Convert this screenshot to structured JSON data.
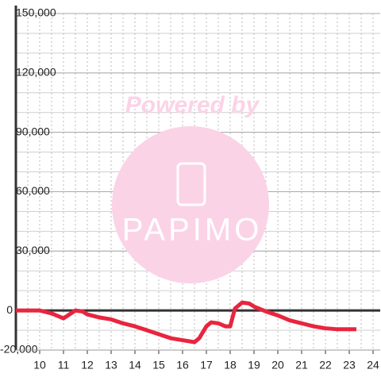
{
  "chart_data": {
    "type": "line",
    "annotations": [
      "Powered by",
      "PAPIMO"
    ],
    "x": [
      9,
      10,
      10.5,
      11,
      11.5,
      11.8,
      12,
      12.5,
      13,
      13.5,
      14,
      14.5,
      15,
      15.5,
      16,
      16.5,
      16.7,
      17,
      17.2,
      17.5,
      17.8,
      18,
      18.2,
      18.5,
      18.8,
      19,
      19.5,
      20,
      20.5,
      21,
      21.5,
      22,
      22.5,
      23,
      23.3
    ],
    "series": [
      {
        "color": "#e8253f",
        "values": [
          0,
          0,
          -1500,
          -4000,
          0,
          -500,
          -2000,
          -3500,
          -4500,
          -6500,
          -8000,
          -10000,
          -12000,
          -14000,
          -15000,
          -16000,
          -14000,
          -8000,
          -6000,
          -6500,
          -8000,
          -8000,
          1000,
          4000,
          3500,
          2000,
          -500,
          -2500,
          -5000,
          -6500,
          -8000,
          -9000,
          -9500,
          -9500,
          -9500
        ]
      }
    ],
    "xlim": [
      9,
      24.3
    ],
    "xticks": [
      10,
      11,
      12,
      13,
      14,
      15,
      16,
      17,
      18,
      19,
      20,
      21,
      22,
      23,
      24
    ],
    "ylim": [
      -20000,
      150000
    ],
    "yticks": [
      {
        "value": -20000,
        "label": "-20,000"
      },
      0,
      {
        "value": 30000,
        "label": "30,000"
      },
      {
        "value": 60000,
        "label": "60,000"
      },
      {
        "value": 90000,
        "label": "90,000"
      },
      {
        "value": 120000,
        "label": "120,000"
      },
      {
        "value": 150000,
        "label": "150,000"
      }
    ],
    "grid": true
  }
}
